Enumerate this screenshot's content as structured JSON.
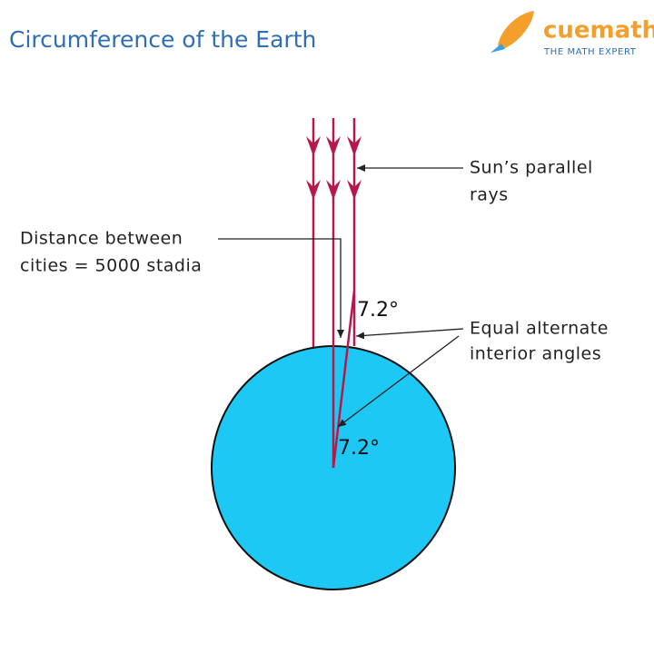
{
  "header": {
    "title": "Circumference of the Earth",
    "logo": {
      "name": "cuemath",
      "tagline": "THE MATH EXPERT"
    }
  },
  "labels": {
    "sun_rays": [
      "Sun’s parallel",
      "rays"
    ],
    "distance": [
      "Distance between",
      "cities = 5000 stadia"
    ],
    "angle_top": "7.2°",
    "angle_center": "7.2°",
    "equal_angles": [
      "Equal alternate",
      "interior angles"
    ]
  }
}
